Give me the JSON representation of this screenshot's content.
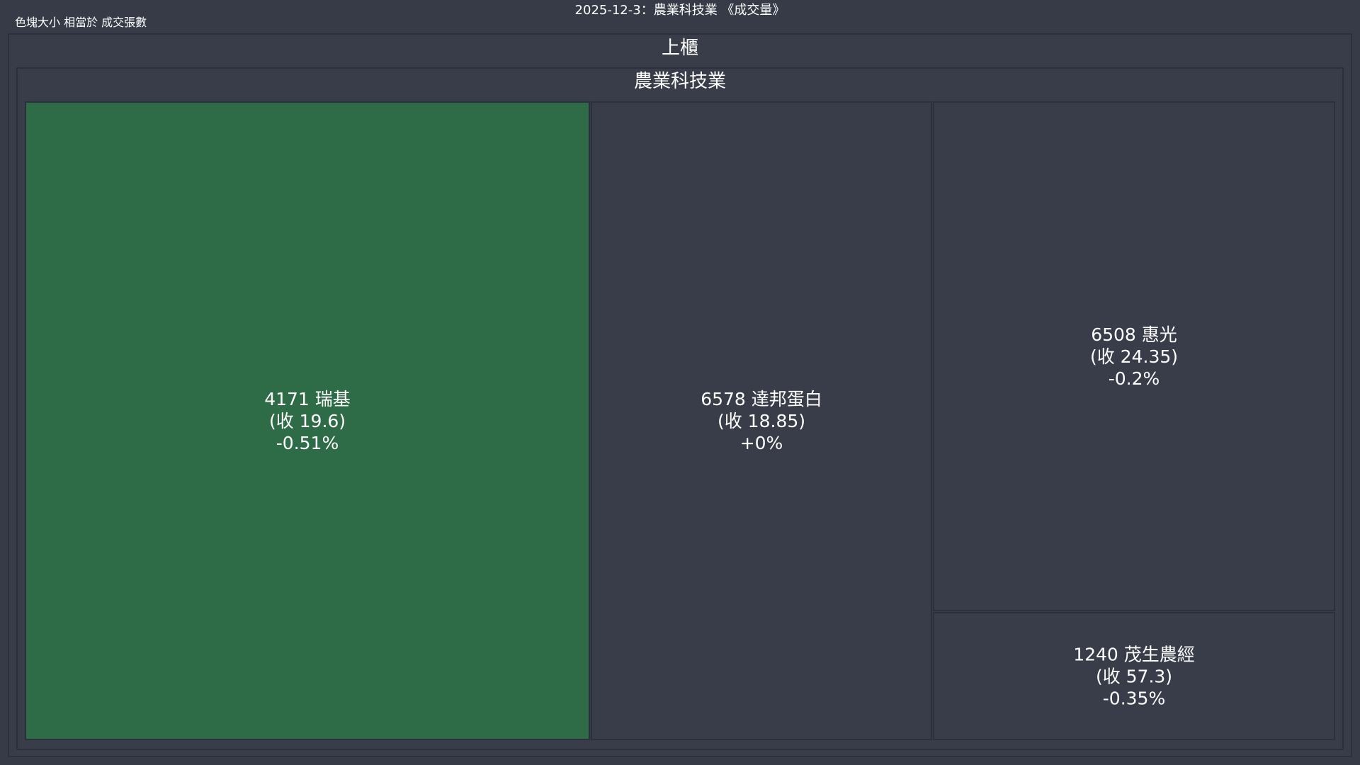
{
  "title": "2025-12-3：農業科技業 《成交量》",
  "size_note": "色塊大小 相當於 成交張數",
  "colors": {
    "background": "#363b47",
    "panel": "#393d4a",
    "border": "#2c303a",
    "down_small": "#2e6b47",
    "neutral": "#393d4a",
    "text": "#ffffff"
  },
  "chart_data": {
    "type": "treemap",
    "title": "2025-12-3：農業科技業 《成交量》",
    "size_metric": "成交張數",
    "root": {
      "label": "上櫃",
      "children": [
        {
          "label": "農業科技業",
          "children": [
            {
              "code": "4171",
              "name": "瑞基",
              "close_text": "(收 19.6)",
              "change_text": "-0.51%",
              "close": 19.6,
              "change_pct": -0.51,
              "color": "#2e6b47"
            },
            {
              "code": "6578",
              "name": "達邦蛋白",
              "close_text": "(收 18.85)",
              "change_text": "+0%",
              "close": 18.85,
              "change_pct": 0,
              "color": "#393d4a"
            },
            {
              "code": "6508",
              "name": "惠光",
              "close_text": "(收 24.35)",
              "change_text": "-0.2%",
              "close": 24.35,
              "change_pct": -0.2,
              "color": "#393d4a"
            },
            {
              "code": "1240",
              "name": "茂生農經",
              "close_text": "(收 57.3)",
              "change_text": "-0.35%",
              "close": 57.3,
              "change_pct": -0.35,
              "color": "#393d4a"
            }
          ]
        }
      ]
    }
  }
}
